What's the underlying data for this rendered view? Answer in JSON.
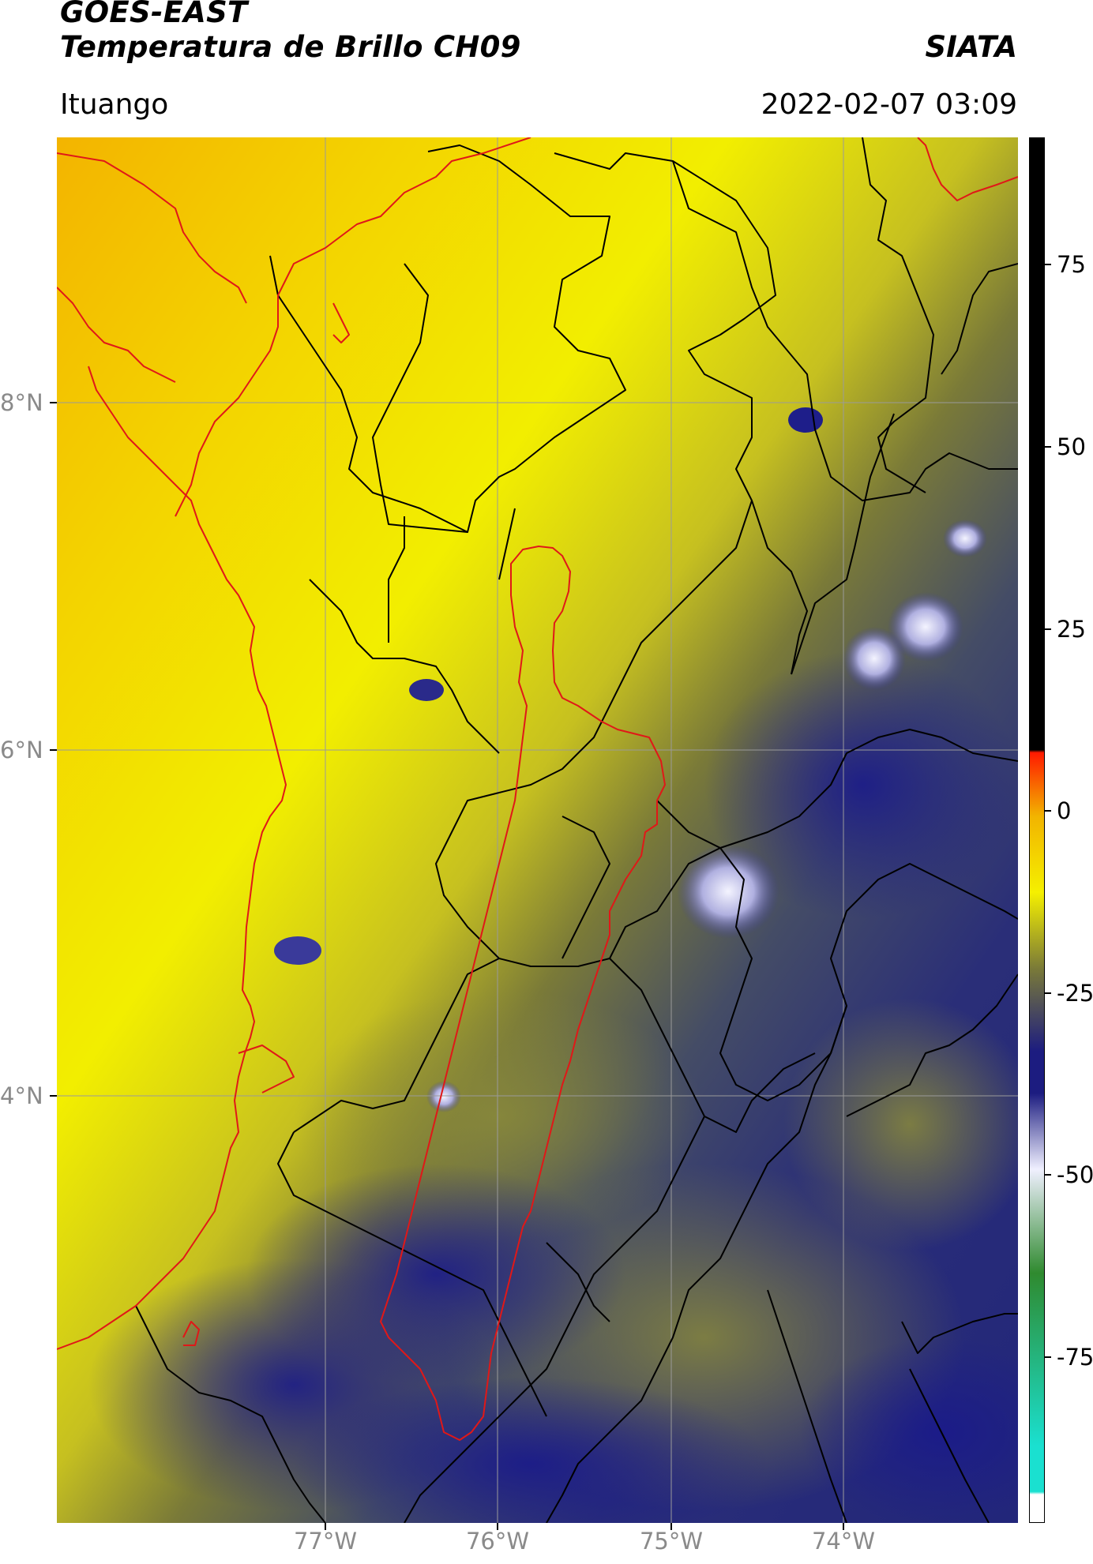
{
  "header": {
    "title_line1": "GOES-EAST",
    "title_line2": "Temperatura de Brillo CH09",
    "organization": "SIATA",
    "location": "Ituango",
    "datetime": "2022-02-07 03:09"
  },
  "axes": {
    "lat_labels": [
      "8°N",
      "6°N",
      "4°N"
    ],
    "lon_labels": [
      "77°W",
      "76°W",
      "75°W",
      "74°W"
    ]
  },
  "colorbar": {
    "ticks": [
      "75",
      "50",
      "25",
      "0",
      "-25",
      "-50",
      "-75"
    ],
    "colors": {
      "warm_yellow": "#f5f000",
      "orange": "#f2b400",
      "olive": "#7a7a38",
      "navy": "#1c1c80",
      "white": "#f0f0ff",
      "green": "#2f8a2f",
      "cyan": "#1ae0d0",
      "red": "#ff1a00",
      "black": "#000000"
    }
  },
  "map": {
    "basin_outline_color": "#e02020",
    "coastline_color": "#e02020",
    "admin_boundary_color": "#000000",
    "grid_color": "#9a9a9a"
  }
}
